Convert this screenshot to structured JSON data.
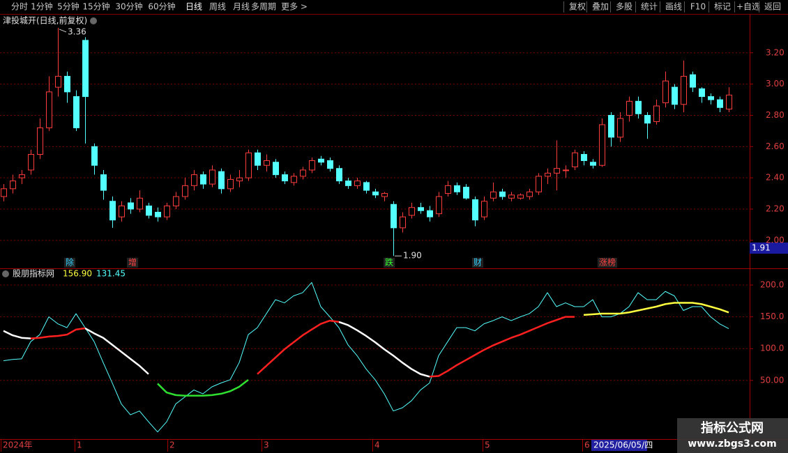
{
  "toolbar": {
    "left": [
      "分时",
      "1分钟",
      "5分钟",
      "15分钟",
      "30分钟",
      "60分钟",
      "日线",
      "周线",
      "月线",
      "多周期",
      "更多 >"
    ],
    "right": [
      "复权",
      "叠加",
      "多股",
      "统计",
      "画线",
      "F10",
      "标记",
      "+自选",
      "返回"
    ]
  },
  "chart_data": [
    {
      "type": "candlestick",
      "title": "津投城开(日线,前复权)",
      "up_color": "#ff3c3c",
      "down_color": "#54ffff",
      "ylim": [
        1.91,
        3.44
      ],
      "yticks": [
        {
          "value": 2,
          "label": "2.00"
        },
        {
          "value": 2.2,
          "label": "2.20"
        },
        {
          "value": 2.4,
          "label": "2.40"
        },
        {
          "value": 2.6,
          "label": "2.60"
        },
        {
          "value": 2.8,
          "label": "2.80"
        },
        {
          "value": 3,
          "label": "3.00"
        },
        {
          "value": 3.2,
          "label": "3.20"
        }
      ],
      "grid": true,
      "high_label": "3.36",
      "low_label": "1.90",
      "cursor_price": "1.91",
      "events": [
        "除",
        "增",
        "跌",
        "财",
        "涨榜"
      ],
      "ohlc": [
        [
          2.28,
          2.36,
          2.25,
          2.33
        ],
        [
          2.33,
          2.42,
          2.3,
          2.38
        ],
        [
          2.4,
          2.45,
          2.36,
          2.42
        ],
        [
          2.45,
          2.58,
          2.42,
          2.55
        ],
        [
          2.55,
          2.78,
          2.52,
          2.72
        ],
        [
          2.72,
          3.05,
          2.7,
          2.95
        ],
        [
          2.98,
          3.36,
          2.92,
          3.05
        ],
        [
          3.05,
          3.08,
          2.88,
          2.95
        ],
        [
          2.92,
          2.96,
          2.7,
          2.72
        ],
        [
          3.28,
          3.3,
          2.62,
          2.92
        ],
        [
          2.6,
          2.62,
          2.42,
          2.48
        ],
        [
          2.42,
          2.45,
          2.26,
          2.32
        ],
        [
          2.25,
          2.28,
          2.08,
          2.13
        ],
        [
          2.15,
          2.25,
          2.12,
          2.22
        ],
        [
          2.24,
          2.27,
          2.17,
          2.2
        ],
        [
          2.2,
          2.32,
          2.18,
          2.27
        ],
        [
          2.22,
          2.24,
          2.14,
          2.16
        ],
        [
          2.18,
          2.21,
          2.12,
          2.15
        ],
        [
          2.15,
          2.24,
          2.13,
          2.22
        ],
        [
          2.22,
          2.31,
          2.2,
          2.28
        ],
        [
          2.28,
          2.4,
          2.26,
          2.35
        ],
        [
          2.35,
          2.45,
          2.32,
          2.42
        ],
        [
          2.42,
          2.44,
          2.33,
          2.36
        ],
        [
          2.36,
          2.48,
          2.34,
          2.45
        ],
        [
          2.44,
          2.46,
          2.3,
          2.33
        ],
        [
          2.33,
          2.42,
          2.31,
          2.39
        ],
        [
          2.38,
          2.45,
          2.34,
          2.4
        ],
        [
          2.4,
          2.58,
          2.38,
          2.56
        ],
        [
          2.56,
          2.58,
          2.45,
          2.48
        ],
        [
          2.48,
          2.55,
          2.44,
          2.51
        ],
        [
          2.5,
          2.52,
          2.4,
          2.42
        ],
        [
          2.42,
          2.44,
          2.36,
          2.38
        ],
        [
          2.37,
          2.43,
          2.35,
          2.41
        ],
        [
          2.41,
          2.47,
          2.39,
          2.45
        ],
        [
          2.45,
          2.53,
          2.43,
          2.51
        ],
        [
          2.52,
          2.54,
          2.48,
          2.5
        ],
        [
          2.51,
          2.53,
          2.44,
          2.46
        ],
        [
          2.46,
          2.48,
          2.36,
          2.38
        ],
        [
          2.38,
          2.4,
          2.33,
          2.35
        ],
        [
          2.35,
          2.4,
          2.33,
          2.38
        ],
        [
          2.37,
          2.38,
          2.3,
          2.32
        ],
        [
          2.31,
          2.33,
          2.27,
          2.29
        ],
        [
          2.28,
          2.31,
          2.25,
          2.3
        ],
        [
          2.23,
          2.25,
          1.9,
          2.08
        ],
        [
          2.08,
          2.18,
          2.05,
          2.15
        ],
        [
          2.16,
          2.24,
          2.14,
          2.21
        ],
        [
          2.21,
          2.24,
          2.17,
          2.19
        ],
        [
          2.19,
          2.22,
          2.12,
          2.15
        ],
        [
          2.17,
          2.31,
          2.15,
          2.28
        ],
        [
          2.3,
          2.38,
          2.28,
          2.35
        ],
        [
          2.35,
          2.37,
          2.29,
          2.31
        ],
        [
          2.34,
          2.36,
          2.26,
          2.27
        ],
        [
          2.26,
          2.28,
          2.09,
          2.13
        ],
        [
          2.15,
          2.28,
          2.13,
          2.25
        ],
        [
          2.27,
          2.37,
          2.25,
          2.31
        ],
        [
          2.31,
          2.33,
          2.26,
          2.28
        ],
        [
          2.27,
          2.31,
          2.25,
          2.29
        ],
        [
          2.27,
          2.3,
          2.26,
          2.29
        ],
        [
          2.28,
          2.33,
          2.26,
          2.31
        ],
        [
          2.31,
          2.43,
          2.29,
          2.41
        ],
        [
          2.41,
          2.46,
          2.36,
          2.43
        ],
        [
          2.43,
          2.64,
          2.32,
          2.46
        ],
        [
          2.45,
          2.48,
          2.4,
          2.45
        ],
        [
          2.47,
          2.58,
          2.45,
          2.56
        ],
        [
          2.55,
          2.57,
          2.48,
          2.51
        ],
        [
          2.5,
          2.52,
          2.46,
          2.48
        ],
        [
          2.48,
          2.78,
          2.47,
          2.74
        ],
        [
          2.8,
          2.82,
          2.6,
          2.66
        ],
        [
          2.66,
          2.82,
          2.63,
          2.78
        ],
        [
          2.8,
          2.92,
          2.76,
          2.89
        ],
        [
          2.89,
          2.92,
          2.78,
          2.81
        ],
        [
          2.8,
          2.82,
          2.65,
          2.75
        ],
        [
          2.76,
          2.9,
          2.74,
          2.86
        ],
        [
          2.88,
          3.08,
          2.85,
          3.02
        ],
        [
          2.98,
          3.0,
          2.84,
          2.87
        ],
        [
          2.87,
          3.15,
          2.82,
          3.05
        ],
        [
          3.06,
          3.08,
          2.95,
          2.98
        ],
        [
          2.97,
          2.98,
          2.88,
          2.92
        ],
        [
          2.92,
          2.94,
          2.87,
          2.9
        ],
        [
          2.9,
          2.92,
          2.82,
          2.85
        ],
        [
          2.84,
          2.98,
          2.82,
          2.93
        ]
      ]
    },
    {
      "type": "line",
      "title": "股朋指标网",
      "legend_values": [
        {
          "value": 156.9,
          "label": "156.90",
          "color": "#ffff40"
        },
        {
          "value": 131.45,
          "label": "131.45",
          "color": "#54ffff"
        }
      ],
      "ylim": [
        -40,
        223
      ],
      "yticks": [
        {
          "value": 50,
          "label": "50.00"
        },
        {
          "value": 100,
          "label": "100.0"
        },
        {
          "value": 150,
          "label": "150.0"
        },
        {
          "value": 200,
          "label": "200.0"
        }
      ],
      "grid": true,
      "series": [
        {
          "color": "#54ffff",
          "width": 1,
          "values": [
            81,
            83,
            84,
            111,
            122,
            150,
            139,
            133,
            155,
            133,
            111,
            78,
            46,
            13,
            -4,
            2,
            -15,
            -31,
            -15,
            13,
            24,
            35,
            29,
            40,
            46,
            51,
            78,
            122,
            133,
            155,
            177,
            172,
            183,
            188,
            204,
            166,
            150,
            133,
            106,
            89,
            68,
            51,
            29,
            2,
            7,
            18,
            35,
            46,
            89,
            111,
            133,
            133,
            128,
            139,
            144,
            150,
            144,
            150,
            155,
            166,
            188,
            166,
            172,
            166,
            166,
            177,
            150,
            150,
            155,
            166,
            188,
            177,
            177,
            190,
            183,
            160,
            166,
            166,
            150,
            139,
            131.45
          ]
        },
        {
          "color": "#ffffff",
          "width": 2.5,
          "values": [
            128,
            121,
            117,
            116,
            null,
            null,
            null,
            null,
            null,
            132,
            124,
            117,
            106,
            95,
            84,
            73,
            60,
            null,
            null,
            null,
            null,
            null,
            null,
            null,
            null,
            null,
            null,
            null,
            null,
            null,
            null,
            null,
            null,
            null,
            null,
            null,
            null,
            142,
            137,
            129,
            120,
            110,
            99,
            89,
            78,
            68,
            60,
            56,
            null,
            null,
            null,
            null,
            null,
            null,
            null,
            null,
            null,
            null,
            null,
            null,
            null,
            null,
            null,
            null,
            null,
            null,
            null,
            null,
            null,
            null,
            null,
            null,
            null,
            null,
            null,
            null,
            null,
            null,
            null,
            null,
            null
          ]
        },
        {
          "color": "#ff2020",
          "width": 2.5,
          "values": [
            null,
            null,
            null,
            116,
            117,
            119,
            120,
            122,
            130,
            132,
            null,
            null,
            null,
            null,
            null,
            null,
            null,
            null,
            null,
            null,
            null,
            null,
            null,
            null,
            null,
            null,
            null,
            null,
            60,
            73,
            86,
            99,
            110,
            121,
            130,
            139,
            144,
            142,
            null,
            null,
            null,
            null,
            null,
            null,
            null,
            null,
            null,
            56,
            57,
            65,
            74,
            82,
            90,
            98,
            105,
            111,
            117,
            122,
            128,
            134,
            140,
            145,
            150,
            150,
            null,
            null,
            null,
            null,
            null,
            null,
            null,
            null,
            null,
            null,
            null,
            null,
            null,
            null,
            null,
            null,
            null
          ]
        },
        {
          "color": "#30e030",
          "width": 2.5,
          "values": [
            null,
            null,
            null,
            null,
            null,
            null,
            null,
            null,
            null,
            null,
            null,
            null,
            null,
            null,
            null,
            null,
            null,
            45,
            31,
            27,
            26,
            26,
            26,
            27,
            29,
            33,
            40,
            51,
            null,
            null,
            null,
            null,
            null,
            null,
            null,
            null,
            null,
            null,
            null,
            null,
            null,
            null,
            null,
            null,
            null,
            null,
            null,
            null,
            null,
            null,
            null,
            null,
            null,
            null,
            null,
            null,
            null,
            null,
            null,
            null,
            null,
            null,
            null,
            null,
            null,
            null,
            null,
            null,
            null,
            null,
            null,
            null,
            null,
            null,
            null,
            null,
            null,
            null,
            null,
            null,
            null
          ]
        },
        {
          "color": "#ffff40",
          "width": 2.5,
          "values": [
            null,
            null,
            null,
            null,
            null,
            null,
            null,
            null,
            null,
            null,
            null,
            null,
            null,
            null,
            null,
            null,
            null,
            null,
            null,
            null,
            null,
            null,
            null,
            null,
            null,
            null,
            null,
            null,
            null,
            null,
            null,
            null,
            null,
            null,
            null,
            null,
            null,
            null,
            null,
            null,
            null,
            null,
            null,
            null,
            null,
            null,
            null,
            null,
            null,
            null,
            null,
            null,
            null,
            null,
            null,
            null,
            null,
            null,
            null,
            null,
            null,
            null,
            null,
            null,
            153,
            154,
            155,
            155,
            155,
            157,
            160,
            163,
            166,
            170,
            172,
            172,
            172,
            170,
            166,
            162,
            156.9
          ]
        }
      ]
    }
  ],
  "x_axis_labels": [
    "2024年",
    "1",
    "2",
    "3",
    "4",
    "5",
    "6"
  ],
  "cursor_date": "2025/06/05/四",
  "watermark": {
    "title": "指标公式网",
    "url": "www.zbgs3.com"
  }
}
